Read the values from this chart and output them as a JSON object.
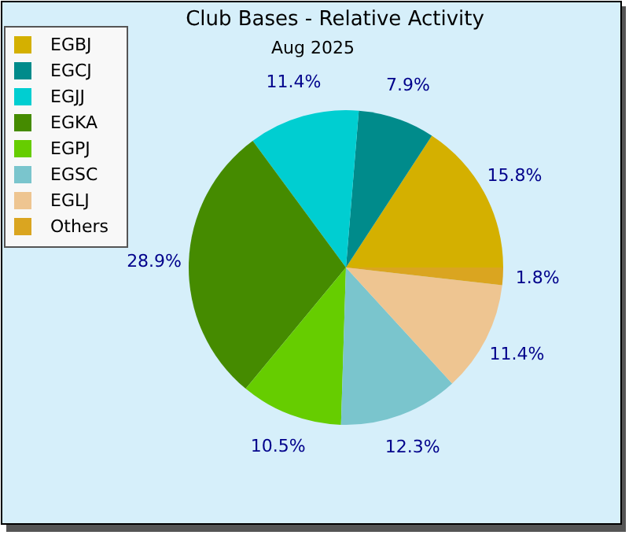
{
  "chart_data": {
    "type": "pie",
    "title": "Club Bases - Relative Activity",
    "subtitle": "Aug 2025",
    "categories": [
      "EGBJ",
      "EGCJ",
      "EGJJ",
      "EGKA",
      "EGPJ",
      "EGSC",
      "EGLJ",
      "Others"
    ],
    "values": [
      15.8,
      7.9,
      11.4,
      28.9,
      10.5,
      12.3,
      11.4,
      1.8
    ],
    "colors": [
      "#d4b000",
      "#008b8b",
      "#00ced1",
      "#458b00",
      "#66cd00",
      "#7ac5cd",
      "#eec591",
      "#daa520"
    ],
    "value_labels": [
      "15.8%",
      "7.9%",
      "11.4%",
      "28.9%",
      "10.5%",
      "12.3%",
      "11.4%",
      "1.8%"
    ],
    "legend": "top left"
  }
}
